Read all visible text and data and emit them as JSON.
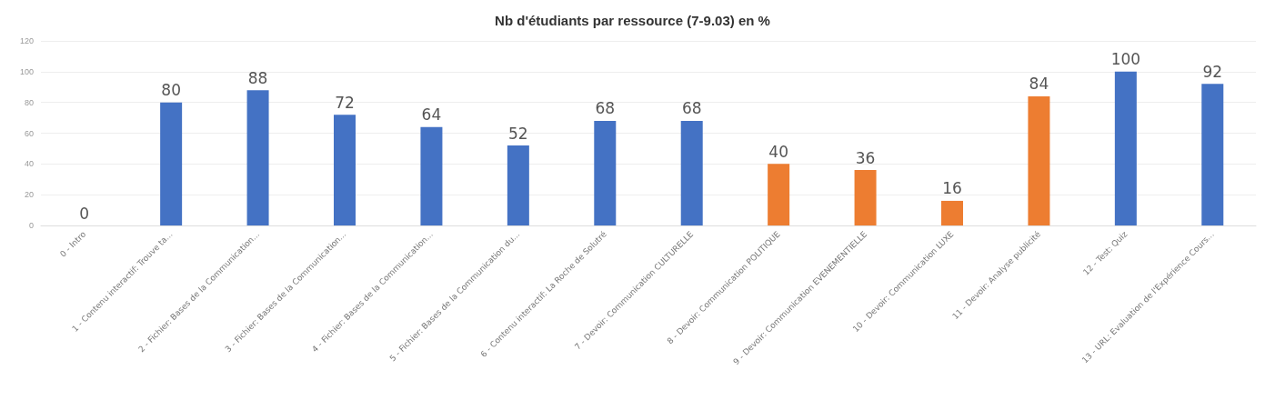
{
  "chart_data": {
    "type": "bar",
    "title": "Nb d'étudiants par ressource (7-9.03) en %",
    "categories": [
      "0 - Intro",
      "1 - Contenu interactif: Trouve ta...",
      "2 - Fichier: Bases de la Communication...",
      "3 - Fichier: Bases de la Communication...",
      "4 - Fichier: Bases de la Communication...",
      "5 - Fichier: Bases de la Communication du...",
      "6 - Contenu interactif: La Roche de Solutré",
      "7 - Devoir: Communication CULTURELLE",
      "8 - Devoir: Communication POLITIQUE",
      "9 - Devoir: Communication EVENEMENTIELLE",
      "10 - Devoir: Communication LUXE",
      "11 - Devoir: Analyse publicité",
      "12 - Test: Quiz",
      "13 - URL: Evaluation de l'Expérience Cours..."
    ],
    "values": [
      0,
      80,
      88,
      72,
      64,
      52,
      68,
      68,
      40,
      36,
      16,
      84,
      100,
      92
    ],
    "colors": [
      "#4472c4",
      "#4472c4",
      "#4472c4",
      "#4472c4",
      "#4472c4",
      "#4472c4",
      "#4472c4",
      "#4472c4",
      "#ed7d31",
      "#ed7d31",
      "#ed7d31",
      "#ed7d31",
      "#4472c4",
      "#4472c4"
    ],
    "ylim": [
      0,
      120
    ],
    "yticks": [
      0,
      20,
      40,
      60,
      80,
      100,
      120
    ],
    "grid": "y",
    "data_labels": true
  }
}
